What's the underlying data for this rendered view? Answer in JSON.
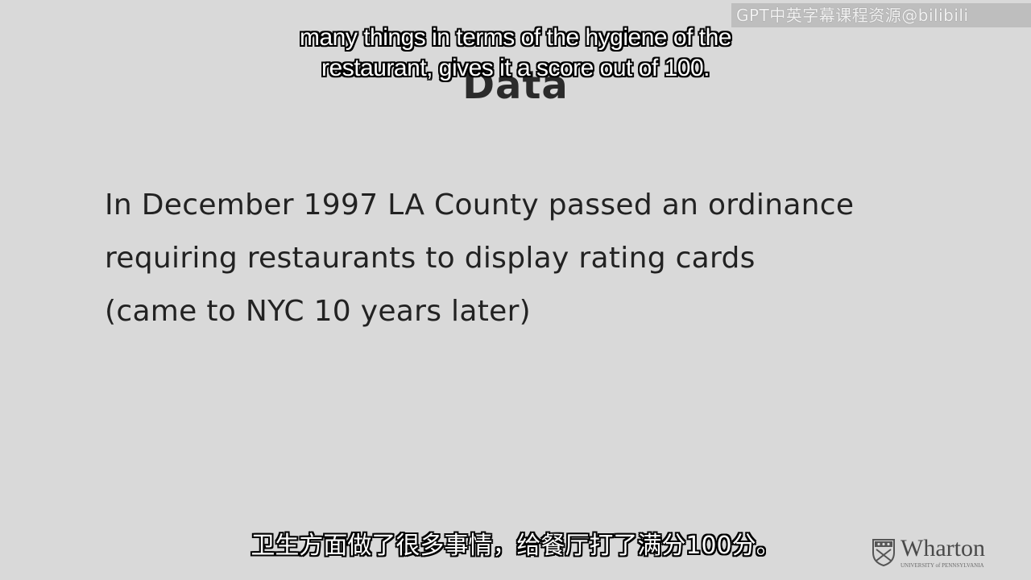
{
  "watermark": {
    "text": "GPT中英字幕课程资源@bilibili"
  },
  "slide": {
    "title": "Data",
    "body_lines": [
      "In December 1997 LA County passed an ordinance",
      "requiring restaurants to display rating cards",
      "(came to NYC 10 years later)"
    ]
  },
  "subtitles": {
    "english_lines": [
      "many things in terms of the hygiene of the",
      "restaurant, gives it a score out of 100."
    ],
    "chinese": "卫生方面做了很多事情，给餐厅打了满分100分。"
  },
  "logo": {
    "name": "Wharton",
    "tagline": "UNIVERSITY of PENNSYLVANIA",
    "icon": "shield-icon"
  },
  "colors": {
    "background": "#d9d9d9",
    "text": "#222222",
    "subtitle_fill": "#ffffff",
    "subtitle_outline": "#000000"
  }
}
